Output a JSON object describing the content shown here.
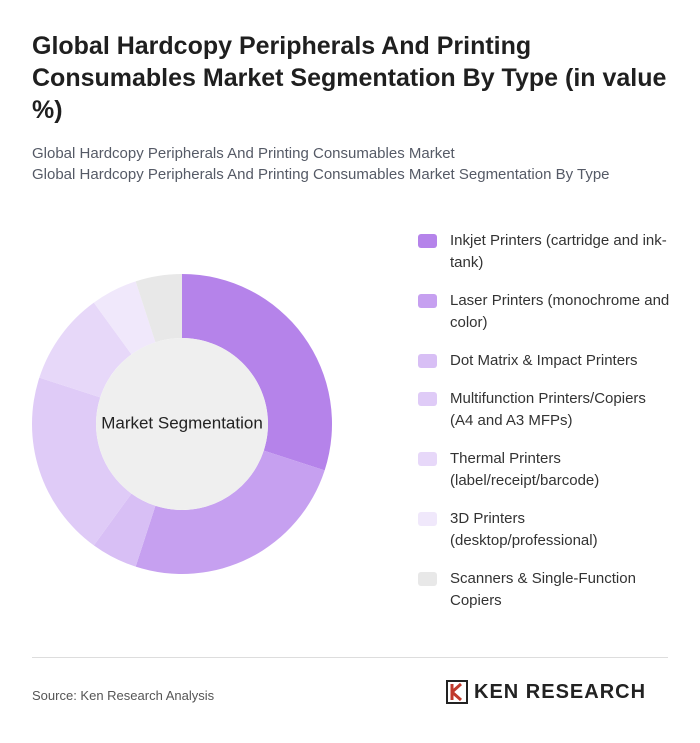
{
  "chart_data": {
    "type": "donut",
    "title": "Global Hardcopy Peripherals And Printing Consumables Market Segmentation By Type (in value %)",
    "subtitle": [
      "Global Hardcopy Peripherals And Printing Consumables Market",
      "Global Hardcopy Peripherals And Printing Consumables Market Segmentation By Type"
    ],
    "center_label": "Market Segmentation",
    "categories": [
      "Inkjet Printers (cartridge and ink-tank)",
      "Laser Printers (monochrome and color)",
      "Dot Matrix & Impact Printers",
      "Multifunction Printers/Copiers (A4 and A3 MFPs)",
      "Thermal Printers (label/receipt/barcode)",
      "3D Printers (desktop/professional)",
      "Scanners & Single-Function Copiers"
    ],
    "values": [
      30,
      25,
      5,
      20,
      10,
      5,
      5
    ],
    "colors": [
      "#b583ea",
      "#c6a0f0",
      "#d8bff5",
      "#dfcbf7",
      "#e7d8f9",
      "#f0e8fb",
      "#e8e8e8"
    ],
    "source": "Source: Ken Research Analysis",
    "brand": "KEN RESEARCH"
  }
}
